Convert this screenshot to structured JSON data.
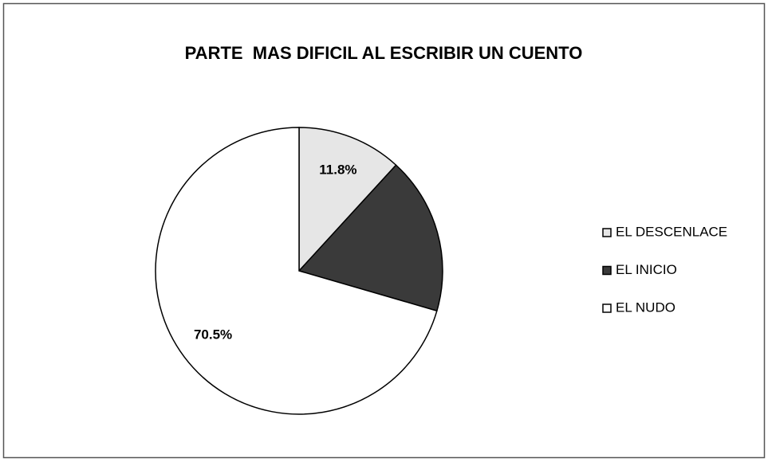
{
  "chart_data": {
    "type": "pie",
    "title": "PARTE  MAS DIFICIL AL ESCRIBIR UN CUENTO",
    "categories": [
      "EL DESCENLACE",
      "EL INICIO",
      "EL NUDO"
    ],
    "values": [
      11.8,
      17.7,
      70.5
    ],
    "value_labels": [
      "11.8%",
      null,
      "70.5%"
    ],
    "colors": [
      "#e6e6e6",
      "#3a3a3a",
      "#ffffff"
    ],
    "legend": "right"
  }
}
